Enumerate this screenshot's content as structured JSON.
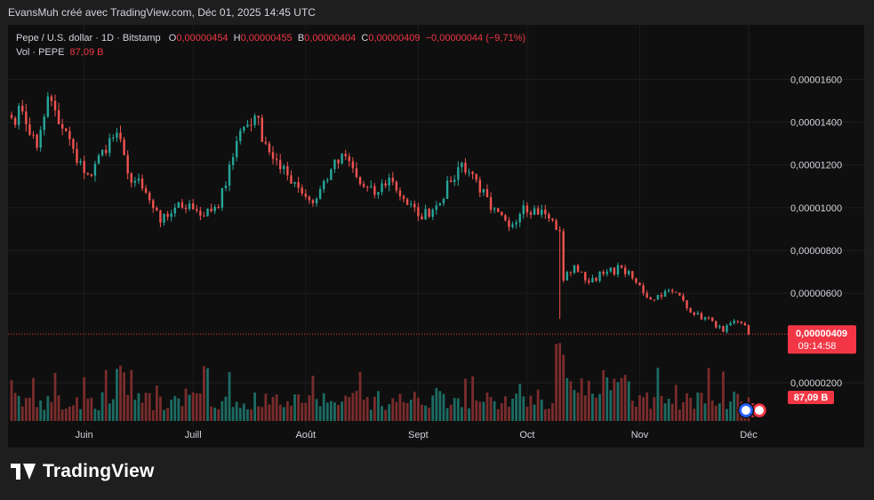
{
  "header": {
    "credit": "EvansMuh créé avec TradingView.com, Déc 01, 2025 14:45 UTC"
  },
  "legend": {
    "symbol": "Pepe / U.S. dollar · 1D · Bitstamp",
    "o_label": "O",
    "o_value": "0,00000454",
    "h_label": "H",
    "h_value": "0,00000455",
    "l_label": "B",
    "l_value": "0,00000404",
    "c_label": "C",
    "c_value": "0,00000409",
    "change": "−0,00000044 (−9,71%)",
    "vol_label": "Vol · PEPE",
    "vol_value": "87,09 B"
  },
  "price_tag": {
    "value": "0,00000409",
    "countdown": "09:14:58"
  },
  "volume_tag": {
    "value": "87,09 B"
  },
  "colors": {
    "up": "#26a69a",
    "down": "#ef5350",
    "up_vol": "#1d6b63",
    "down_vol": "#7a2c2c",
    "tag": "#f23645"
  },
  "brand": {
    "name": "TradingView"
  },
  "chart_data": {
    "type": "candlestick",
    "y_ticks": [
      "0,00001600",
      "0,00001400",
      "0,00001200",
      "0,00001000",
      "0,00000800",
      "0,00000600",
      "0,00000200"
    ],
    "y_tick_values": [
      1.6e-05,
      1.4e-05,
      1.2e-05,
      1e-05,
      8e-06,
      6e-06,
      2e-06
    ],
    "x_ticks": [
      "Juin",
      "Juill",
      "Août",
      "Sept",
      "Oct",
      "Nov",
      "Déc"
    ],
    "x_tick_dates": [
      "2025-06-01",
      "2025-07-01",
      "2025-08-01",
      "2025-09-01",
      "2025-10-01",
      "2025-11-01",
      "2025-12-01"
    ],
    "x_range": [
      "2025-05-12",
      "2025-12-01"
    ],
    "ylim": [
      3.6e-06,
      1.73e-05
    ],
    "last_price": 4.09e-06,
    "anchors": [
      [
        "2025-05-12",
        1.42e-05
      ],
      [
        "2025-05-15",
        1.45e-05
      ],
      [
        "2025-05-19",
        1.28e-05
      ],
      [
        "2025-05-22",
        1.52e-05
      ],
      [
        "2025-05-25",
        1.39e-05
      ],
      [
        "2025-05-28",
        1.32e-05
      ],
      [
        "2025-05-30",
        1.21e-05
      ],
      [
        "2025-06-03",
        1.15e-05
      ],
      [
        "2025-06-06",
        1.27e-05
      ],
      [
        "2025-06-10",
        1.35e-05
      ],
      [
        "2025-06-13",
        1.16e-05
      ],
      [
        "2025-06-17",
        1.09e-05
      ],
      [
        "2025-06-22",
        9.3e-06
      ],
      [
        "2025-06-26",
        1e-05
      ],
      [
        "2025-06-30",
        1.02e-05
      ],
      [
        "2025-07-04",
        9.6e-06
      ],
      [
        "2025-07-08",
        1e-05
      ],
      [
        "2025-07-11",
        1.2e-05
      ],
      [
        "2025-07-14",
        1.36e-05
      ],
      [
        "2025-07-18",
        1.43e-05
      ],
      [
        "2025-07-21",
        1.3e-05
      ],
      [
        "2025-07-25",
        1.18e-05
      ],
      [
        "2025-07-29",
        1.12e-05
      ],
      [
        "2025-08-03",
        1.02e-05
      ],
      [
        "2025-08-08",
        1.18e-05
      ],
      [
        "2025-08-12",
        1.24e-05
      ],
      [
        "2025-08-16",
        1.11e-05
      ],
      [
        "2025-08-20",
        1.06e-05
      ],
      [
        "2025-08-24",
        1.14e-05
      ],
      [
        "2025-08-28",
        1.04e-05
      ],
      [
        "2025-09-01",
        9.6e-06
      ],
      [
        "2025-09-05",
        9.9e-06
      ],
      [
        "2025-09-10",
        1.12e-05
      ],
      [
        "2025-09-13",
        1.21e-05
      ],
      [
        "2025-09-17",
        1.13e-05
      ],
      [
        "2025-09-21",
        9.9e-06
      ],
      [
        "2025-09-26",
        9.1e-06
      ],
      [
        "2025-09-30",
        1.01e-05
      ],
      [
        "2025-10-06",
        9.7e-06
      ],
      [
        "2025-10-10",
        8.9e-06
      ],
      [
        "2025-10-11",
        6.6e-06
      ],
      [
        "2025-10-14",
        7.3e-06
      ],
      [
        "2025-10-17",
        6.6e-06
      ],
      [
        "2025-10-22",
        6.9e-06
      ],
      [
        "2025-10-27",
        7.2e-06
      ],
      [
        "2025-10-31",
        6.5e-06
      ],
      [
        "2025-11-04",
        5.7e-06
      ],
      [
        "2025-11-08",
        6.1e-06
      ],
      [
        "2025-11-12",
        5.9e-06
      ],
      [
        "2025-11-16",
        5e-06
      ],
      [
        "2025-11-21",
        4.7e-06
      ],
      [
        "2025-11-24",
        4.2e-06
      ],
      [
        "2025-11-26",
        4.6e-06
      ],
      [
        "2025-11-30",
        4.5e-06
      ],
      [
        "2025-12-01",
        4.09e-06
      ]
    ]
  }
}
